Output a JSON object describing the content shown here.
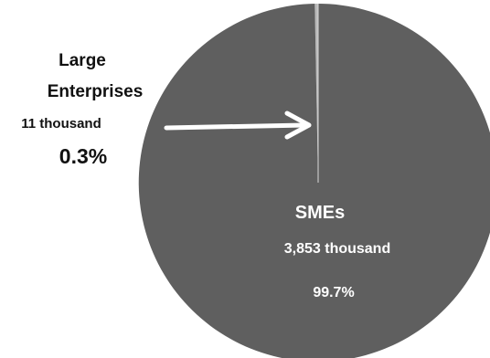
{
  "chart_data": {
    "type": "pie",
    "slices": [
      {
        "label_line1": "Large",
        "label_line2": "Enterprises",
        "count": "11 thousand",
        "percent_label": "0.3%",
        "value": 0.3,
        "color": "#b9b9b9"
      },
      {
        "label": "SMEs",
        "count": "3,853 thousand",
        "percent_label": "99.7%",
        "value": 99.7,
        "color": "#5f5f5f"
      }
    ],
    "annotation": {
      "type": "arrow",
      "color": "#ffffff",
      "points_to": "Large Enterprises"
    }
  }
}
